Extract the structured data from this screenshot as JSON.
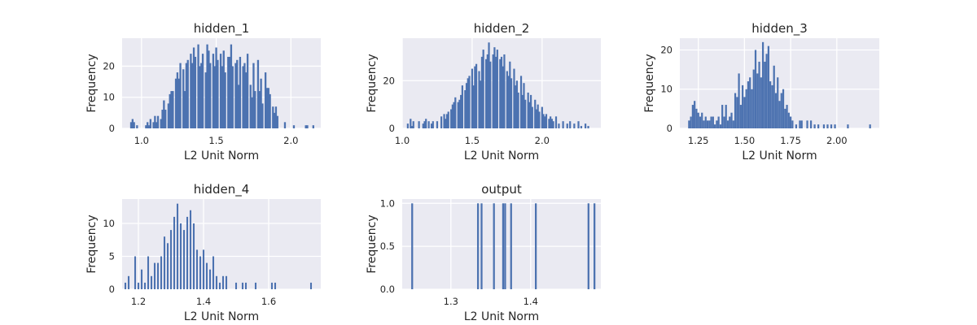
{
  "colors": {
    "plot_bg": "#eaeaf2",
    "grid": "#ffffff",
    "bar": "#4c72b0",
    "text": "#262626"
  },
  "chart_data": [
    {
      "type": "bar",
      "title": "hidden_1",
      "xlabel": "L2 Unit Norm",
      "ylabel": "Frequency",
      "xlim": [
        0.87,
        2.2
      ],
      "ylim": [
        0,
        29
      ],
      "xticks": [
        1.0,
        1.5,
        2.0
      ],
      "xtick_labels": [
        "1.0",
        "1.5",
        "2.0"
      ],
      "yticks": [
        0,
        10,
        20
      ],
      "ytick_labels": [
        "0",
        "10",
        "20"
      ],
      "grid": true,
      "bin_width": 0.0126,
      "bins_x": [
        0.93,
        0.94,
        0.95,
        0.97,
        1.03,
        1.04,
        1.05,
        1.06,
        1.08,
        1.09,
        1.1,
        1.11,
        1.13,
        1.14,
        1.15,
        1.16,
        1.18,
        1.19,
        1.2,
        1.21,
        1.23,
        1.24,
        1.25,
        1.26,
        1.28,
        1.29,
        1.3,
        1.31,
        1.33,
        1.34,
        1.35,
        1.36,
        1.38,
        1.39,
        1.4,
        1.41,
        1.43,
        1.44,
        1.45,
        1.46,
        1.48,
        1.49,
        1.5,
        1.51,
        1.53,
        1.54,
        1.55,
        1.56,
        1.58,
        1.59,
        1.6,
        1.61,
        1.63,
        1.64,
        1.65,
        1.66,
        1.68,
        1.69,
        1.7,
        1.71,
        1.73,
        1.74,
        1.75,
        1.76,
        1.78,
        1.79,
        1.8,
        1.81,
        1.83,
        1.84,
        1.85,
        1.86,
        1.88,
        1.89,
        1.9,
        1.91,
        1.96,
        2.02,
        2.1,
        2.11,
        2.15
      ],
      "values": [
        2,
        3,
        2,
        1,
        1,
        2,
        1,
        3,
        2,
        4,
        2,
        4,
        3,
        6,
        9,
        6,
        8,
        11,
        12,
        12,
        16,
        18,
        16,
        21,
        19,
        12,
        21,
        22,
        24,
        21,
        26,
        23,
        27,
        20,
        21,
        24,
        18,
        27,
        25,
        21,
        24,
        20,
        26,
        22,
        24,
        20,
        25,
        18,
        23,
        23,
        27,
        20,
        21,
        22,
        14,
        23,
        20,
        21,
        18,
        24,
        14,
        10,
        21,
        12,
        22,
        12,
        16,
        8,
        18,
        13,
        13,
        11,
        7,
        5,
        7,
        4,
        2,
        1,
        1,
        1,
        1
      ]
    },
    {
      "type": "bar",
      "title": "hidden_2",
      "xlabel": "L2 Unit Norm",
      "ylabel": "Frequency",
      "xlim": [
        1.0,
        2.42
      ],
      "ylim": [
        0,
        37.8
      ],
      "xticks": [
        1.0,
        1.5,
        2.0
      ],
      "xtick_labels": [
        "1.0",
        "1.5",
        "2.0"
      ],
      "yticks": [
        0,
        20
      ],
      "ytick_labels": [
        "0",
        "20"
      ],
      "grid": true,
      "bin_width": 0.0128,
      "bins_x": [
        1.04,
        1.06,
        1.07,
        1.08,
        1.12,
        1.15,
        1.16,
        1.17,
        1.19,
        1.21,
        1.22,
        1.25,
        1.28,
        1.3,
        1.31,
        1.32,
        1.33,
        1.35,
        1.36,
        1.37,
        1.38,
        1.4,
        1.41,
        1.42,
        1.43,
        1.45,
        1.46,
        1.47,
        1.48,
        1.5,
        1.51,
        1.52,
        1.53,
        1.55,
        1.56,
        1.57,
        1.58,
        1.6,
        1.61,
        1.62,
        1.63,
        1.65,
        1.66,
        1.67,
        1.68,
        1.7,
        1.71,
        1.72,
        1.73,
        1.75,
        1.76,
        1.77,
        1.78,
        1.8,
        1.81,
        1.82,
        1.83,
        1.85,
        1.86,
        1.87,
        1.88,
        1.9,
        1.91,
        1.92,
        1.93,
        1.95,
        1.96,
        1.97,
        1.98,
        2.0,
        2.01,
        2.02,
        2.03,
        2.05,
        2.06,
        2.07,
        2.08,
        2.1,
        2.12,
        2.15,
        2.18,
        2.2,
        2.23,
        2.26,
        2.28,
        2.31,
        2.33
      ],
      "values": [
        2,
        4,
        1,
        3,
        3,
        2,
        3,
        4,
        3,
        2,
        3,
        3,
        5,
        6,
        4,
        6,
        7,
        8,
        10,
        11,
        13,
        11,
        12,
        14,
        18,
        16,
        19,
        21,
        22,
        25,
        18,
        26,
        27,
        24,
        20,
        30,
        33,
        29,
        31,
        36,
        28,
        31,
        34,
        30,
        33,
        29,
        30,
        26,
        31,
        24,
        22,
        28,
        21,
        25,
        18,
        20,
        15,
        22,
        14,
        19,
        12,
        15,
        11,
        14,
        9,
        12,
        8,
        10,
        7,
        9,
        6,
        5,
        6,
        4,
        5,
        4,
        3,
        5,
        2,
        3,
        2,
        3,
        2,
        3,
        1,
        2,
        1
      ]
    },
    {
      "type": "bar",
      "title": "hidden_3",
      "xlabel": "L2 Unit Norm",
      "ylabel": "Frequency",
      "xlim": [
        1.15,
        2.23
      ],
      "ylim": [
        0,
        23
      ],
      "xticks": [
        1.25,
        1.5,
        1.75,
        2.0
      ],
      "xtick_labels": [
        "1.25",
        "1.50",
        "1.75",
        "2.00"
      ],
      "yticks": [
        0,
        10,
        20
      ],
      "ytick_labels": [
        "0",
        "10",
        "20"
      ],
      "grid": true,
      "bin_width": 0.0098,
      "bins_x": [
        1.2,
        1.21,
        1.22,
        1.23,
        1.24,
        1.25,
        1.26,
        1.27,
        1.28,
        1.29,
        1.3,
        1.31,
        1.32,
        1.33,
        1.34,
        1.35,
        1.36,
        1.37,
        1.38,
        1.39,
        1.4,
        1.41,
        1.42,
        1.43,
        1.44,
        1.45,
        1.46,
        1.47,
        1.48,
        1.49,
        1.5,
        1.51,
        1.52,
        1.53,
        1.54,
        1.55,
        1.56,
        1.57,
        1.58,
        1.59,
        1.6,
        1.61,
        1.62,
        1.63,
        1.64,
        1.65,
        1.66,
        1.67,
        1.68,
        1.69,
        1.7,
        1.71,
        1.72,
        1.73,
        1.74,
        1.75,
        1.76,
        1.78,
        1.8,
        1.81,
        1.84,
        1.86,
        1.88,
        1.9,
        1.93,
        1.95,
        1.97,
        1.99,
        2.06,
        2.18
      ],
      "values": [
        2,
        3,
        6,
        7,
        5,
        4,
        3,
        4,
        2,
        3,
        2,
        2,
        3,
        3,
        1,
        2,
        3,
        1,
        6,
        3,
        6,
        2,
        3,
        4,
        2,
        9,
        8,
        14,
        6,
        11,
        8,
        10,
        12,
        13,
        10,
        15,
        20,
        14,
        17,
        13,
        22,
        17,
        19,
        21,
        12,
        11,
        16,
        9,
        13,
        7,
        9,
        10,
        5,
        6,
        4,
        3,
        2,
        1,
        2,
        2,
        2,
        2,
        1,
        1,
        1,
        1,
        1,
        1,
        1,
        1
      ]
    },
    {
      "type": "bar",
      "title": "hidden_4",
      "xlabel": "L2 Unit Norm",
      "ylabel": "Frequency",
      "xlim": [
        1.15,
        1.76
      ],
      "ylim": [
        0,
        13.7
      ],
      "xticks": [
        1.2,
        1.4,
        1.6
      ],
      "xtick_labels": [
        "1.2",
        "1.4",
        "1.6"
      ],
      "yticks": [
        0,
        5,
        10
      ],
      "ytick_labels": [
        "0",
        "5",
        "10"
      ],
      "grid": true,
      "bin_width": 0.0052,
      "bins_x": [
        1.16,
        1.17,
        1.19,
        1.2,
        1.21,
        1.22,
        1.23,
        1.24,
        1.25,
        1.26,
        1.27,
        1.28,
        1.29,
        1.3,
        1.31,
        1.32,
        1.33,
        1.34,
        1.35,
        1.36,
        1.37,
        1.38,
        1.39,
        1.4,
        1.41,
        1.42,
        1.43,
        1.44,
        1.45,
        1.46,
        1.47,
        1.5,
        1.52,
        1.53,
        1.56,
        1.61,
        1.62,
        1.73
      ],
      "values": [
        1,
        2,
        5,
        1,
        3,
        1,
        5,
        2,
        4,
        4,
        5,
        8,
        7,
        9,
        11,
        13,
        10,
        9,
        11,
        12,
        10,
        6,
        5,
        6,
        4,
        3,
        5,
        2,
        1,
        2,
        2,
        1,
        1,
        1,
        1,
        1,
        1,
        1
      ]
    },
    {
      "type": "bar",
      "title": "output",
      "xlabel": "L2 Unit Norm",
      "ylabel": "Frequency",
      "xlim": [
        1.239,
        1.488
      ],
      "ylim": [
        0,
        1.05
      ],
      "xticks": [
        1.3,
        1.4
      ],
      "xtick_labels": [
        "1.3",
        "1.4"
      ],
      "yticks": [
        0,
        0.5,
        1.0
      ],
      "ytick_labels": [
        "0.0",
        "0.5",
        "1.0"
      ],
      "grid": true,
      "bin_width": 0.0023,
      "bins_x": [
        1.2515,
        1.334,
        1.3385,
        1.354,
        1.3655,
        1.368,
        1.3755,
        1.4065,
        1.4725,
        1.48
      ],
      "values": [
        1,
        1,
        1,
        1,
        1,
        1,
        1,
        1,
        1,
        1
      ]
    }
  ]
}
